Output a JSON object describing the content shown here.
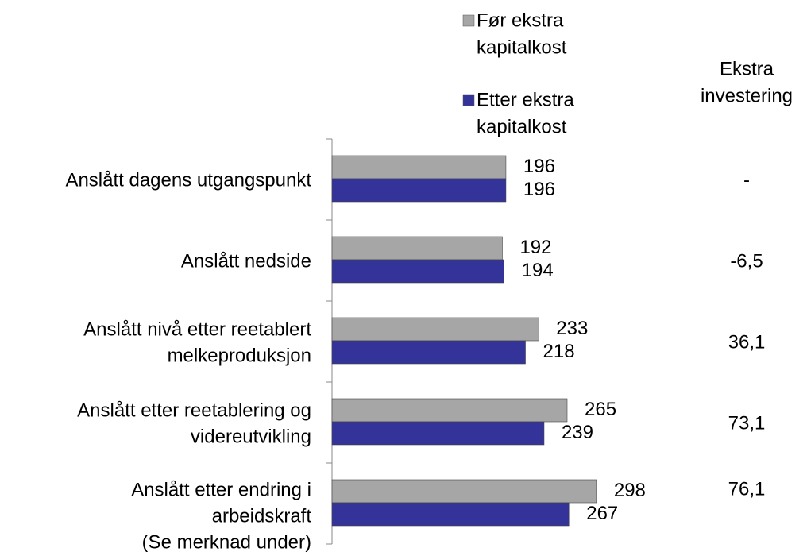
{
  "chart_data": {
    "type": "bar",
    "orientation": "horizontal",
    "categories": [
      [
        "Anslått dagens utgangspunkt"
      ],
      [
        "Anslått nedside"
      ],
      [
        "Anslått nivå etter reetablert",
        "melkeproduksjon"
      ],
      [
        "Anslått  etter reetablering og",
        "videreutvikling"
      ],
      [
        "Anslått etter endring i",
        "arbeidskraft",
        "(Se merknad under)"
      ]
    ],
    "series": [
      {
        "name": [
          "Før ekstra",
          "kapitalkost"
        ],
        "color": "#a6a6a6",
        "values": [
          196,
          192,
          233,
          265,
          298
        ]
      },
      {
        "name": [
          "Etter ekstra",
          "kapitalkost"
        ],
        "color": "#333399",
        "values": [
          196,
          194,
          218,
          239,
          267
        ]
      }
    ],
    "extra_investment": {
      "title": [
        "Ekstra",
        "investering"
      ],
      "values": [
        null,
        -6.5,
        36.1,
        73.1,
        76.1
      ],
      "value_labels": [
        "-",
        "-6,5",
        "36,1",
        "73,1",
        "76,1"
      ]
    }
  }
}
